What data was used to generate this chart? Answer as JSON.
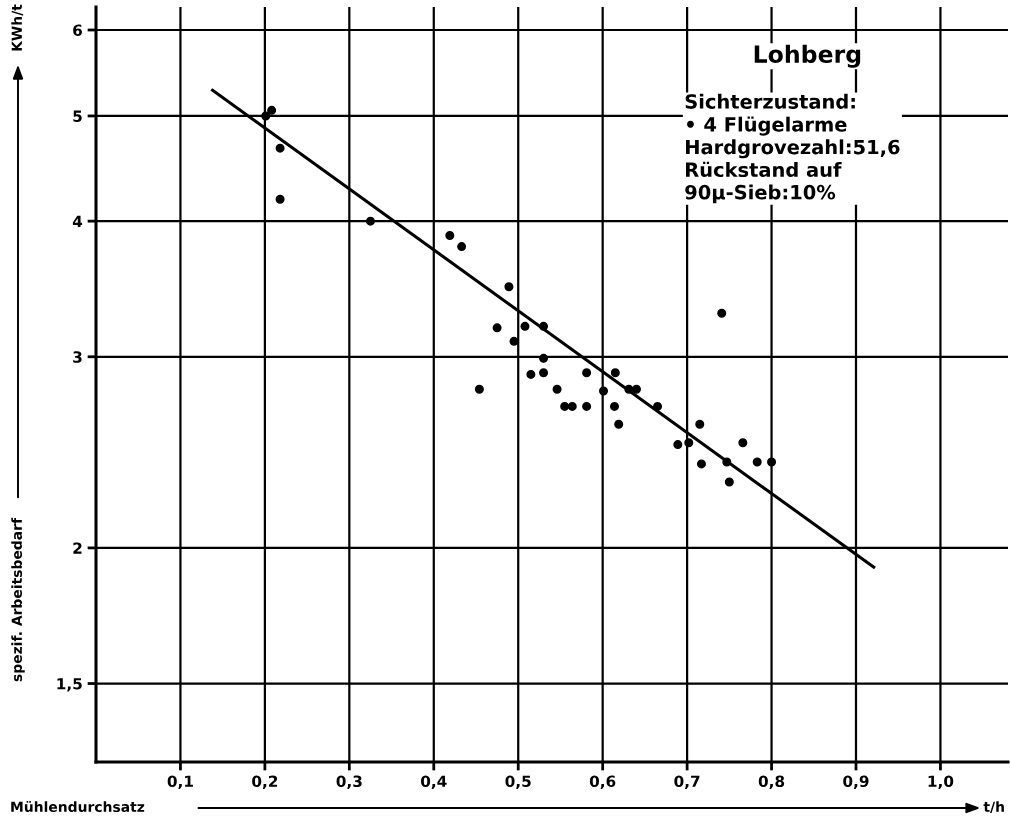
{
  "chart_data": {
    "type": "scatter",
    "xlabel": "Mühlendurchsatz",
    "ylabel": "spezif. Arbeitsbedarf",
    "log": "y",
    "grid": true,
    "marker": "circle",
    "xlim": [
      0,
      1.08
    ],
    "xticks": [
      {
        "value": 0.1,
        "label": "0,1"
      },
      {
        "value": 0.2,
        "label": "0,2"
      },
      {
        "value": 0.3,
        "label": "0,3"
      },
      {
        "value": 0.4,
        "label": "0,4"
      },
      {
        "value": 0.5,
        "label": "0,5"
      },
      {
        "value": 0.6,
        "label": "0,6"
      },
      {
        "value": 0.7,
        "label": "0,7"
      },
      {
        "value": 0.8,
        "label": "0,8"
      },
      {
        "value": 0.9,
        "label": "0,9"
      },
      {
        "value": 1.0,
        "label": "1,0"
      }
    ],
    "ylim": [
      1.27,
      6.3
    ],
    "yticks": [
      {
        "value": 1.5,
        "label": "1,5"
      },
      2,
      3,
      4,
      5,
      6
    ],
    "series": [
      {
        "color": "#000000",
        "x": [
          0.201,
          0.208,
          0.218,
          0.218,
          0.325,
          0.419,
          0.433,
          0.454,
          0.475,
          0.489,
          0.495,
          0.508,
          0.515,
          0.53,
          0.53,
          0.53,
          0.546,
          0.555,
          0.564,
          0.581,
          0.581,
          0.601,
          0.614,
          0.615,
          0.619,
          0.631,
          0.64,
          0.665,
          0.689,
          0.702,
          0.715,
          0.717,
          0.741,
          0.747,
          0.75,
          0.766,
          0.783,
          0.8
        ],
        "values": [
          5.0,
          5.06,
          4.67,
          4.19,
          4.0,
          3.88,
          3.79,
          2.8,
          3.19,
          3.48,
          3.1,
          3.2,
          2.89,
          3.2,
          2.99,
          2.9,
          2.8,
          2.7,
          2.7,
          2.9,
          2.7,
          2.79,
          2.7,
          2.9,
          2.6,
          2.8,
          2.8,
          2.7,
          2.49,
          2.5,
          2.6,
          2.39,
          3.29,
          2.4,
          2.3,
          2.5,
          2.4,
          2.4
        ]
      },
      {
        "type": "line",
        "color": "#000000",
        "marker": "none",
        "line_style": "solid",
        "x": [
          0.138,
          0.921
        ],
        "values": [
          5.28,
          1.92
        ]
      }
    ],
    "annotations": [
      "Lohberg",
      "Sichterzustand:\n• 4 Flügelarme\nHardgrovezahl:51,6\nRückstand auf\n90µ-Sieb:10%",
      "KWh/t",
      "t/h"
    ]
  }
}
